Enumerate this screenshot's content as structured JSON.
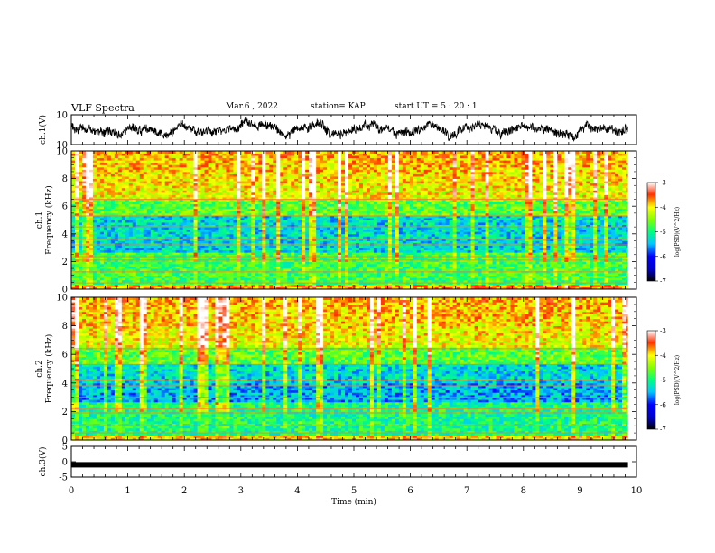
{
  "header": {
    "title": "VLF Spectra",
    "date": "Mar.6 , 2022",
    "station": "station= KAP",
    "start_ut": "start UT = 5 : 20 : 1"
  },
  "chart_data": [
    {
      "type": "line",
      "ylabel": "ch.1(V)",
      "ylim": [
        -10,
        10
      ],
      "yticks": [
        "10",
        "-10"
      ],
      "xlim": [
        0,
        10
      ],
      "series": [
        {
          "color": "#000000"
        }
      ]
    },
    {
      "type": "heatmap",
      "ylabel": "ch.1\nFrequency (kHz)",
      "ylim": [
        0,
        10
      ],
      "yticks": [
        "0",
        "2",
        "4",
        "6",
        "8",
        "10"
      ],
      "xlim": [
        0,
        10
      ],
      "colorbar": {
        "label": "log(PSD)(V^2/Hz)",
        "range": [
          -7,
          -3
        ],
        "ticks": [
          "-3",
          "-4",
          "-5",
          "-6",
          "-7"
        ]
      }
    },
    {
      "type": "heatmap",
      "ylabel": "ch.2\nFrequency (kHz)",
      "ylim": [
        0,
        10
      ],
      "yticks": [
        "0",
        "2",
        "4",
        "6",
        "8",
        "10"
      ],
      "xlim": [
        0,
        10
      ],
      "colorbar": {
        "label": "log(PSD)(V^2/Hz)",
        "range": [
          -7,
          -3
        ],
        "ticks": [
          "-3",
          "-4",
          "-5",
          "-6",
          "-7"
        ]
      }
    },
    {
      "type": "line",
      "ylabel": "ch.3(V)",
      "ylim": [
        -5,
        5
      ],
      "yticks": [
        "5",
        "0",
        "-5"
      ],
      "xlim": [
        0,
        10
      ],
      "xlabel": "Time (min)",
      "xticks": [
        "0",
        "1",
        "2",
        "3",
        "4",
        "5",
        "6",
        "7",
        "8",
        "9",
        "10"
      ],
      "series": [
        {
          "values_constant": -1,
          "color": "#000000"
        }
      ]
    }
  ]
}
